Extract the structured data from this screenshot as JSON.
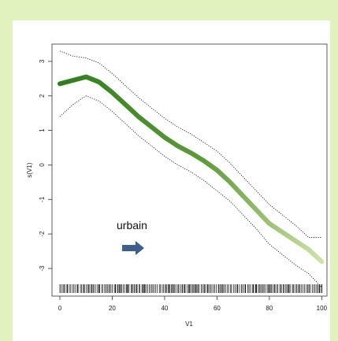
{
  "chart_data": {
    "type": "line",
    "xlabel": "V1",
    "ylabel": "s(V1)",
    "xlim": [
      -3,
      102
    ],
    "ylim": [
      -3.8,
      3.5
    ],
    "x_ticks": [
      0,
      20,
      40,
      60,
      80,
      100
    ],
    "y_ticks": [
      3,
      2,
      1,
      0,
      -1,
      -2,
      -3
    ],
    "grid": false,
    "series": [
      {
        "role": "smooth",
        "color_start": "#2e7d1e",
        "color_end": "#cfe3a8",
        "x": [
          0,
          5,
          10,
          15,
          20,
          25,
          30,
          35,
          40,
          45,
          50,
          55,
          60,
          65,
          70,
          75,
          80,
          85,
          90,
          95,
          100
        ],
        "y": [
          2.35,
          2.45,
          2.55,
          2.4,
          2.1,
          1.75,
          1.4,
          1.1,
          0.8,
          0.55,
          0.35,
          0.12,
          -0.15,
          -0.5,
          -0.9,
          -1.3,
          -1.7,
          -1.95,
          -2.2,
          -2.45,
          -2.8
        ]
      },
      {
        "role": "upper-bound",
        "style": "dotted",
        "x": [
          0,
          5,
          10,
          15,
          20,
          25,
          30,
          35,
          40,
          45,
          50,
          55,
          60,
          65,
          70,
          75,
          80,
          85,
          90,
          95,
          100
        ],
        "y": [
          3.3,
          3.15,
          3.1,
          2.95,
          2.65,
          2.3,
          1.95,
          1.65,
          1.35,
          1.1,
          0.9,
          0.65,
          0.4,
          0.05,
          -0.35,
          -0.75,
          -1.15,
          -1.45,
          -1.75,
          -2.1,
          -2.1
        ]
      },
      {
        "role": "lower-bound",
        "style": "dotted",
        "x": [
          0,
          5,
          10,
          15,
          20,
          25,
          30,
          35,
          40,
          45,
          50,
          55,
          60,
          65,
          70,
          75,
          80,
          85,
          90,
          95,
          100
        ],
        "y": [
          1.4,
          1.75,
          2.0,
          1.85,
          1.55,
          1.2,
          0.85,
          0.55,
          0.25,
          0.0,
          -0.2,
          -0.45,
          -0.75,
          -1.05,
          -1.45,
          -1.85,
          -2.3,
          -2.6,
          -2.9,
          -3.15,
          -3.55
        ]
      }
    ],
    "rug": {
      "color": "#111111",
      "x_min": 0,
      "x_max": 100,
      "count": 170
    },
    "annotation": {
      "label": "urbain",
      "arrow_color": "#3b5f8f",
      "x": 25,
      "y": -2.45
    }
  }
}
